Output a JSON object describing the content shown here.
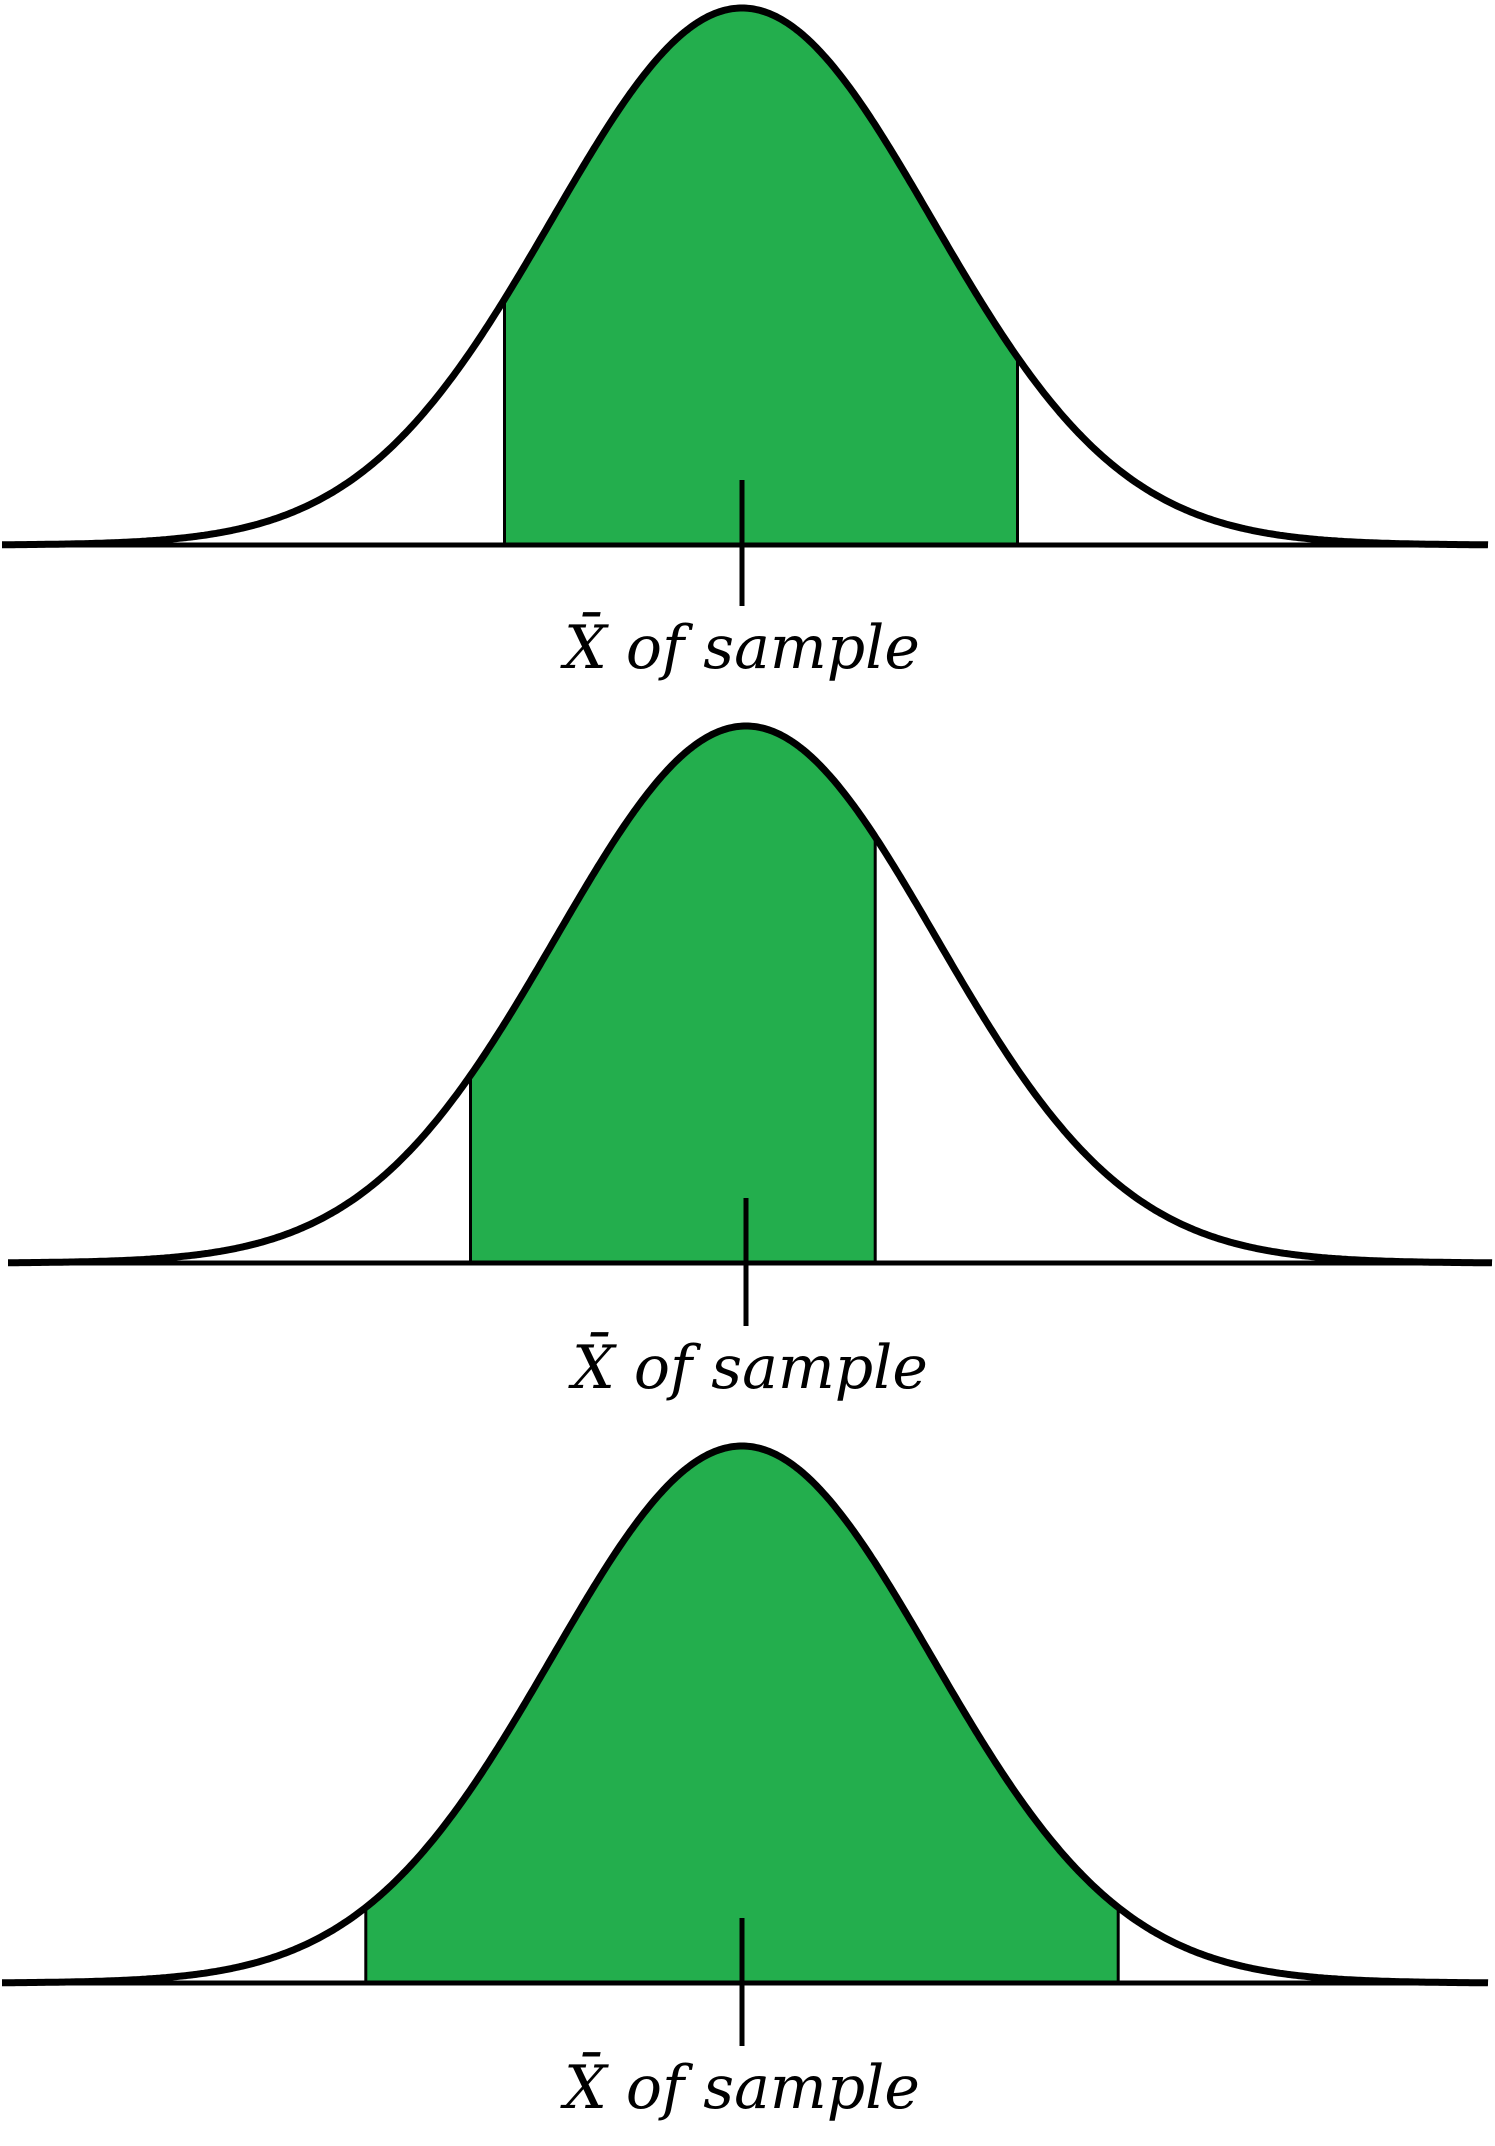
{
  "colors": {
    "fill": "#23ae4d",
    "stroke": "#000000",
    "background": "#ffffff"
  },
  "panels": [
    {
      "label": {
        "symbol": "X̄",
        "text": " of sample"
      },
      "shaded_from_sigma": -1.25,
      "shaded_to_sigma": 1.45
    },
    {
      "label": {
        "symbol": "X̄",
        "text": " of sample"
      },
      "shaded_from_sigma": -1.45,
      "shaded_to_sigma": 0.68
    },
    {
      "label": {
        "symbol": "X̄",
        "text": " of sample"
      },
      "shaded_from_sigma": -1.98,
      "shaded_to_sigma": 1.98
    }
  ]
}
